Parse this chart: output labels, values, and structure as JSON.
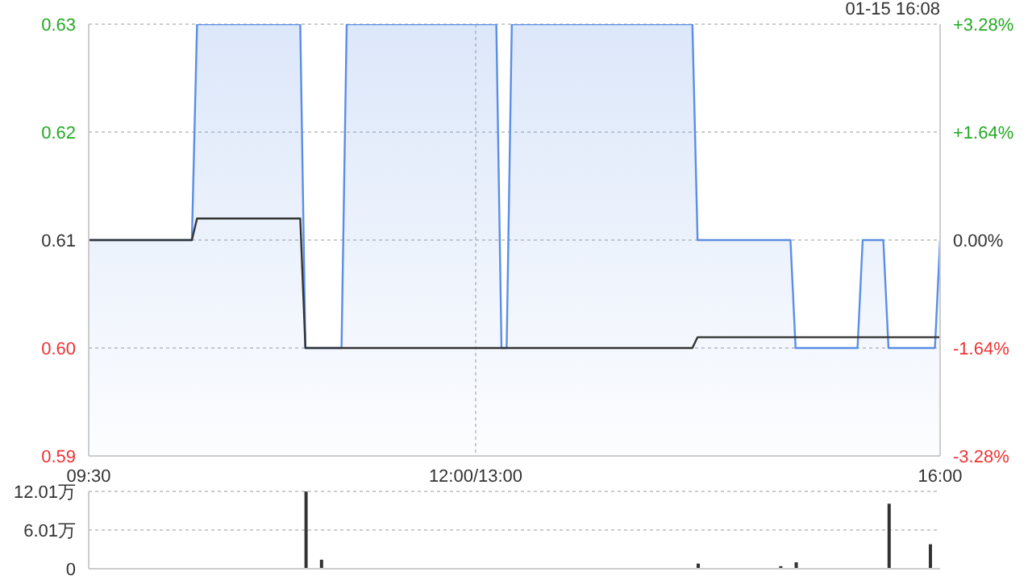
{
  "chart_data": [
    {
      "type": "area",
      "annotations": [
        "01-15 16:08"
      ],
      "categories": [
        "09:30",
        null,
        null,
        null,
        null,
        null,
        null,
        null,
        null,
        null,
        null,
        null,
        null,
        null,
        null,
        null,
        null,
        null,
        null,
        null,
        null,
        null,
        null,
        null,
        null,
        null,
        null,
        null,
        null,
        null,
        null,
        null,
        null,
        null,
        null,
        null,
        null,
        null,
        null,
        null,
        null,
        null,
        null,
        null,
        null,
        null,
        null,
        null,
        null,
        null,
        null,
        null,
        null,
        null,
        null,
        null,
        null,
        null,
        null,
        null,
        null,
        null,
        null,
        null,
        null,
        null,
        null,
        null,
        null,
        null,
        null,
        null,
        null,
        null,
        null,
        "12:00/13:00",
        null,
        null,
        null,
        null,
        null,
        null,
        null,
        null,
        null,
        null,
        null,
        null,
        null,
        null,
        null,
        null,
        null,
        null,
        null,
        null,
        null,
        null,
        null,
        null,
        null,
        null,
        null,
        null,
        null,
        null,
        null,
        null,
        null,
        null,
        null,
        null,
        null,
        null,
        null,
        null,
        null,
        null,
        null,
        null,
        null,
        null,
        null,
        null,
        null,
        null,
        null,
        null,
        null,
        null,
        null,
        null,
        null,
        null,
        null,
        null,
        null,
        null,
        null,
        null,
        null,
        null,
        null,
        null,
        null,
        null,
        null,
        null,
        null,
        null,
        null,
        null,
        null,
        null,
        null,
        null,
        null,
        null,
        null,
        null,
        null,
        null,
        null,
        null,
        null,
        "16:00"
      ],
      "ylim": [
        0.59,
        0.63
      ],
      "yticks": [
        {
          "value": 0.59,
          "label": "0.59"
        },
        {
          "value": 0.6,
          "label": "0.60"
        },
        {
          "value": 0.61,
          "label": "0.61"
        },
        {
          "value": 0.62,
          "label": "0.62"
        },
        {
          "value": 0.63,
          "label": "0.63"
        }
      ],
      "y2lim": [
        -3.28,
        3.28
      ],
      "y2ticks": [
        {
          "value": -3.28,
          "label": "-3.28%"
        },
        {
          "value": -1.64,
          "label": "-1.64%"
        },
        {
          "value": 0,
          "label": "0.00%"
        },
        {
          "value": 1.64,
          "label": "+1.64%"
        },
        {
          "value": 3.28,
          "label": "+3.28%"
        }
      ],
      "grid": true,
      "series": [
        {
          "color": "#5a8ee6",
          "values": [
            0.61,
            0.61,
            0.61,
            0.61,
            0.61,
            0.61,
            0.61,
            0.61,
            0.61,
            0.61,
            0.61,
            0.61,
            0.61,
            0.61,
            0.61,
            0.61,
            0.61,
            0.61,
            0.61,
            0.61,
            0.61,
            0.63,
            0.63,
            0.63,
            0.63,
            0.63,
            0.63,
            0.63,
            0.63,
            0.63,
            0.63,
            0.63,
            0.63,
            0.63,
            0.63,
            0.63,
            0.63,
            0.63,
            0.63,
            0.63,
            0.63,
            0.63,
            0.6,
            0.6,
            0.6,
            0.6,
            0.6,
            0.6,
            0.6,
            0.6,
            0.63,
            0.63,
            0.63,
            0.63,
            0.63,
            0.63,
            0.63,
            0.63,
            0.63,
            0.63,
            0.63,
            0.63,
            0.63,
            0.63,
            0.63,
            0.63,
            0.63,
            0.63,
            0.63,
            0.63,
            0.63,
            0.63,
            0.63,
            0.63,
            0.63,
            0.63,
            0.63,
            0.63,
            0.63,
            0.63,
            0.6,
            0.6,
            0.63,
            0.63,
            0.63,
            0.63,
            0.63,
            0.63,
            0.63,
            0.63,
            0.63,
            0.63,
            0.63,
            0.63,
            0.63,
            0.63,
            0.63,
            0.63,
            0.63,
            0.63,
            0.63,
            0.63,
            0.63,
            0.63,
            0.63,
            0.63,
            0.63,
            0.63,
            0.63,
            0.63,
            0.63,
            0.63,
            0.63,
            0.63,
            0.63,
            0.63,
            0.63,
            0.63,
            0.61,
            0.61,
            0.61,
            0.61,
            0.61,
            0.61,
            0.61,
            0.61,
            0.61,
            0.61,
            0.61,
            0.61,
            0.61,
            0.61,
            0.61,
            0.61,
            0.61,
            0.61,
            0.61,
            0.6,
            0.6,
            0.6,
            0.6,
            0.6,
            0.6,
            0.6,
            0.6,
            0.6,
            0.6,
            0.6,
            0.6,
            0.6,
            0.61,
            0.61,
            0.61,
            0.61,
            0.61,
            0.6,
            0.6,
            0.6,
            0.6,
            0.6,
            0.6,
            0.6,
            0.6,
            0.6,
            0.6,
            0.61
          ]
        },
        {
          "type": "line",
          "color": "#333333",
          "values": [
            0.61,
            0.61,
            0.61,
            0.61,
            0.61,
            0.61,
            0.61,
            0.61,
            0.61,
            0.61,
            0.61,
            0.61,
            0.61,
            0.61,
            0.61,
            0.61,
            0.61,
            0.61,
            0.61,
            0.61,
            0.61,
            0.612,
            0.612,
            0.612,
            0.612,
            0.612,
            0.612,
            0.612,
            0.612,
            0.612,
            0.612,
            0.612,
            0.612,
            0.612,
            0.612,
            0.612,
            0.612,
            0.612,
            0.612,
            0.612,
            0.612,
            0.612,
            0.6,
            0.6,
            0.6,
            0.6,
            0.6,
            0.6,
            0.6,
            0.6,
            0.6,
            0.6,
            0.6,
            0.6,
            0.6,
            0.6,
            0.6,
            0.6,
            0.6,
            0.6,
            0.6,
            0.6,
            0.6,
            0.6,
            0.6,
            0.6,
            0.6,
            0.6,
            0.6,
            0.6,
            0.6,
            0.6,
            0.6,
            0.6,
            0.6,
            0.6,
            0.6,
            0.6,
            0.6,
            0.6,
            0.6,
            0.6,
            0.6,
            0.6,
            0.6,
            0.6,
            0.6,
            0.6,
            0.6,
            0.6,
            0.6,
            0.6,
            0.6,
            0.6,
            0.6,
            0.6,
            0.6,
            0.6,
            0.6,
            0.6,
            0.6,
            0.6,
            0.6,
            0.6,
            0.6,
            0.6,
            0.6,
            0.6,
            0.6,
            0.6,
            0.6,
            0.6,
            0.6,
            0.6,
            0.6,
            0.6,
            0.6,
            0.6,
            0.601,
            0.601,
            0.601,
            0.601,
            0.601,
            0.601,
            0.601,
            0.601,
            0.601,
            0.601,
            0.601,
            0.601,
            0.601,
            0.601,
            0.601,
            0.601,
            0.601,
            0.601,
            0.601,
            0.601,
            0.601,
            0.601,
            0.601,
            0.601,
            0.601,
            0.601,
            0.601,
            0.601,
            0.601,
            0.601,
            0.601,
            0.601,
            0.601,
            0.601,
            0.601,
            0.601,
            0.601,
            0.601,
            0.601,
            0.601,
            0.601,
            0.601,
            0.601,
            0.601,
            0.601,
            0.601,
            0.601,
            0.601
          ]
        }
      ]
    },
    {
      "type": "bar",
      "categories": [
        null,
        null,
        null,
        null,
        null,
        null,
        null,
        null,
        null,
        null,
        null,
        null,
        null,
        null,
        null,
        null,
        null,
        null,
        null,
        null,
        null,
        null,
        null,
        null,
        null,
        null,
        null,
        null,
        null,
        null,
        null,
        null,
        null,
        null,
        null,
        null,
        null,
        null,
        null,
        null,
        null,
        null,
        null,
        null,
        null,
        null,
        null,
        null,
        null,
        null,
        null,
        null,
        null,
        null,
        null,
        null,
        null,
        null,
        null,
        null,
        null,
        null,
        null,
        null,
        null,
        null,
        null,
        null,
        null,
        null,
        null,
        null,
        null,
        null,
        null,
        null,
        null,
        null,
        null,
        null,
        null,
        null,
        null,
        null,
        null,
        null,
        null,
        null,
        null,
        null,
        null,
        null,
        null,
        null,
        null,
        null,
        null,
        null,
        null,
        null,
        null,
        null,
        null,
        null,
        null,
        null,
        null,
        null,
        null,
        null,
        null,
        null,
        null,
        null,
        null,
        null,
        null,
        null,
        null,
        null,
        null,
        null,
        null,
        null,
        null,
        null,
        null,
        null,
        null,
        null,
        null,
        null,
        null,
        null,
        null,
        null,
        null,
        null,
        null,
        null,
        null,
        null,
        null,
        null,
        null,
        null,
        null,
        null,
        null,
        null,
        null,
        null,
        null,
        null,
        null,
        null,
        null,
        null,
        null,
        null,
        null,
        null,
        null,
        null,
        null,
        null
      ],
      "ylim": [
        0,
        12.01
      ],
      "yticks": [
        {
          "value": 0,
          "label": "0"
        },
        {
          "value": 6.01,
          "label": "6.01万"
        },
        {
          "value": 12.01,
          "label": "12.01万"
        }
      ],
      "grid": "y",
      "tick_labels": "y",
      "series": [
        {
          "color": "#333333",
          "values": [
            null,
            null,
            null,
            null,
            null,
            null,
            null,
            null,
            null,
            null,
            null,
            null,
            null,
            null,
            null,
            null,
            null,
            null,
            null,
            null,
            null,
            null,
            null,
            null,
            null,
            null,
            null,
            null,
            null,
            null,
            null,
            null,
            null,
            null,
            null,
            null,
            null,
            null,
            null,
            null,
            null,
            null,
            12.0,
            null,
            null,
            1.4,
            null,
            null,
            null,
            null,
            null,
            null,
            null,
            null,
            null,
            null,
            null,
            null,
            null,
            null,
            null,
            null,
            null,
            null,
            null,
            null,
            null,
            null,
            null,
            null,
            null,
            null,
            null,
            null,
            null,
            null,
            null,
            null,
            null,
            null,
            null,
            null,
            null,
            null,
            null,
            null,
            null,
            null,
            null,
            null,
            null,
            null,
            null,
            null,
            null,
            null,
            null,
            null,
            null,
            null,
            null,
            null,
            null,
            null,
            null,
            null,
            null,
            null,
            null,
            null,
            null,
            null,
            null,
            null,
            null,
            null,
            null,
            null,
            0.8,
            null,
            null,
            null,
            null,
            null,
            null,
            null,
            null,
            null,
            null,
            null,
            null,
            null,
            null,
            null,
            0.4,
            null,
            null,
            1.0,
            null,
            null,
            null,
            null,
            null,
            null,
            null,
            null,
            null,
            null,
            null,
            null,
            null,
            null,
            null,
            null,
            null,
            10.1,
            null,
            null,
            null,
            null,
            null,
            null,
            null,
            3.8,
            null,
            null
          ]
        }
      ]
    }
  ]
}
